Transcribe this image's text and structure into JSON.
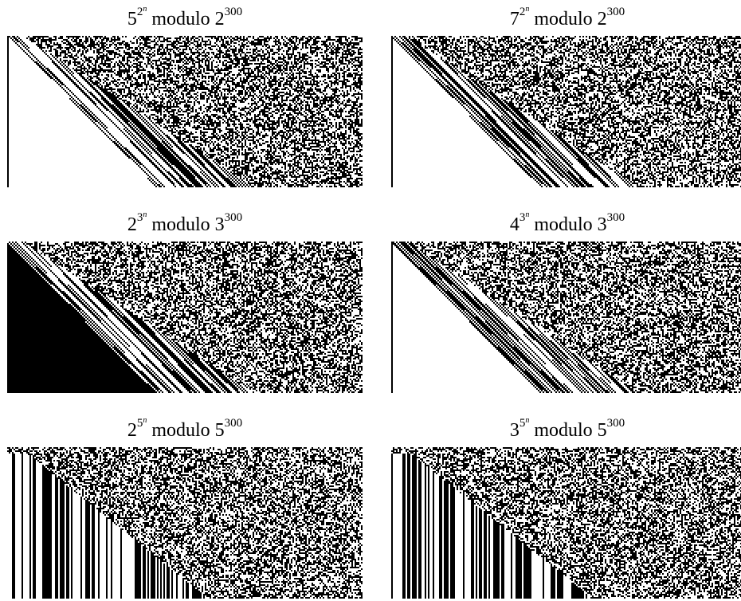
{
  "panels": [
    {
      "base": "5",
      "exp_base": "2",
      "exp_var": "n",
      "mod_word": "modulo",
      "mod_base": "2",
      "mod_exp": "300",
      "pattern": "binary-power-2",
      "seed": 11,
      "fill_start": "white"
    },
    {
      "base": "7",
      "exp_base": "2",
      "exp_var": "n",
      "mod_word": "modulo",
      "mod_base": "2",
      "mod_exp": "300",
      "pattern": "binary-power-2",
      "seed": 29,
      "fill_start": "white"
    },
    {
      "base": "2",
      "exp_base": "3",
      "exp_var": "n",
      "mod_word": "modulo",
      "mod_base": "3",
      "mod_exp": "300",
      "pattern": "ternary-power-3",
      "seed": 41,
      "fill_start": "black"
    },
    {
      "base": "4",
      "exp_base": "3",
      "exp_var": "n",
      "mod_word": "modulo",
      "mod_base": "3",
      "mod_exp": "300",
      "pattern": "ternary-power-3",
      "seed": 53,
      "fill_start": "white"
    },
    {
      "base": "2",
      "exp_base": "5",
      "exp_var": "n",
      "mod_word": "modulo",
      "mod_base": "5",
      "mod_exp": "300",
      "pattern": "quinary-power-5",
      "seed": 67,
      "fill_start": "columns"
    },
    {
      "base": "3",
      "exp_base": "5",
      "exp_var": "n",
      "mod_word": "modulo",
      "mod_base": "5",
      "mod_exp": "300",
      "pattern": "quinary-power-5",
      "seed": 79,
      "fill_start": "columns"
    }
  ]
}
